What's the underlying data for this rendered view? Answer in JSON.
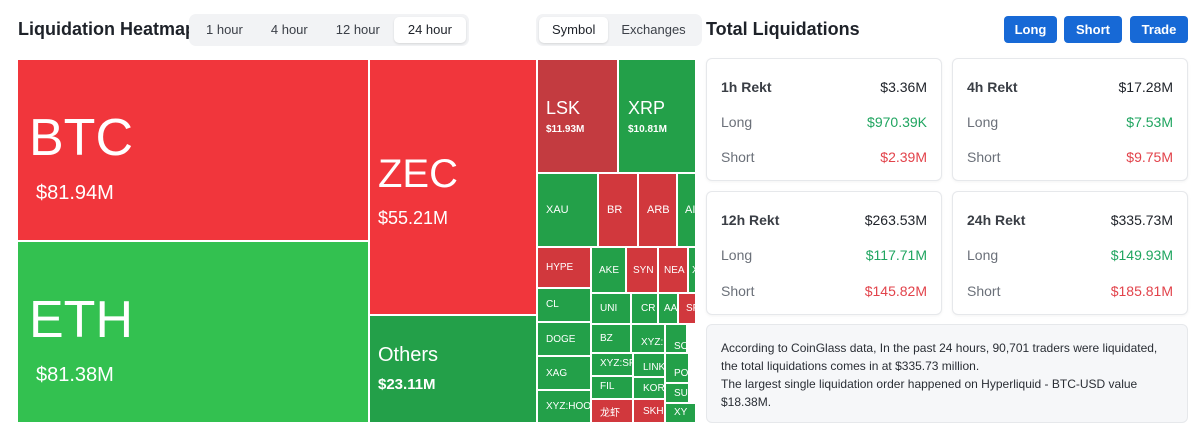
{
  "heatmap": {
    "title": "Liquidation Heatmap",
    "time_tabs": [
      {
        "label": "1 hour",
        "active": false
      },
      {
        "label": "4 hour",
        "active": false
      },
      {
        "label": "12 hour",
        "active": false
      },
      {
        "label": "24 hour",
        "active": true
      }
    ],
    "view_tabs": [
      {
        "label": "Symbol",
        "active": true
      },
      {
        "label": "Exchanges",
        "active": false
      }
    ],
    "tiles": {
      "btc": {
        "symbol": "BTC",
        "value": "$81.94M"
      },
      "eth": {
        "symbol": "ETH",
        "value": "$81.38M"
      },
      "zec": {
        "symbol": "ZEC",
        "value": "$55.21M"
      },
      "others": {
        "symbol": "Others",
        "value": "$23.11M"
      },
      "lsk": {
        "symbol": "LSK",
        "value": "$11.93M"
      },
      "xrp": {
        "symbol": "XRP",
        "value": "$10.81M"
      },
      "xau": {
        "symbol": "XAU"
      },
      "br": {
        "symbol": "BR"
      },
      "arb": {
        "symbol": "ARB"
      },
      "ai": {
        "symbol": "AI"
      },
      "hype": {
        "symbol": "HYPE"
      },
      "ake": {
        "symbol": "AKE"
      },
      "syn": {
        "symbol": "SYN"
      },
      "nea": {
        "symbol": "NEA"
      },
      "x1": {
        "symbol": "X"
      },
      "cl": {
        "symbol": "CL"
      },
      "uni": {
        "symbol": "UNI"
      },
      "cr": {
        "symbol": "CR"
      },
      "aa": {
        "symbol": "AA"
      },
      "sp": {
        "symbol": "SP"
      },
      "doge": {
        "symbol": "DOGE"
      },
      "bz": {
        "symbol": "BZ"
      },
      "xyz1": {
        "symbol": "XYZ:"
      },
      "so": {
        "symbol": "SO"
      },
      "xag": {
        "symbol": "XAG"
      },
      "xyzsp": {
        "symbol": "XYZ:SP"
      },
      "link": {
        "symbol": "LINK"
      },
      "po": {
        "symbol": "PO"
      },
      "xyzhoo": {
        "symbol": "XYZ:HOO"
      },
      "fil": {
        "symbol": "FIL"
      },
      "kor": {
        "symbol": "KOR"
      },
      "su": {
        "symbol": "SU"
      },
      "longxia": {
        "symbol": "龙虾"
      },
      "skh": {
        "symbol": "SKH"
      },
      "xy": {
        "symbol": "XY"
      }
    }
  },
  "totals": {
    "title": "Total Liquidations",
    "buttons": {
      "long": "Long",
      "short": "Short",
      "trade": "Trade"
    },
    "long_label": "Long",
    "short_label": "Short",
    "cards": {
      "h1": {
        "title": "1h Rekt",
        "total": "$3.36M",
        "long": "$970.39K",
        "short": "$2.39M"
      },
      "h4": {
        "title": "4h Rekt",
        "total": "$17.28M",
        "long": "$7.53M",
        "short": "$9.75M"
      },
      "h12": {
        "title": "12h Rekt",
        "total": "$263.53M",
        "long": "$117.71M",
        "short": "$145.82M"
      },
      "h24": {
        "title": "24h Rekt",
        "total": "$335.73M",
        "long": "$149.93M",
        "short": "$185.81M"
      }
    },
    "summary": {
      "line1": "According to CoinGlass data, In the past 24 hours, 90,701 traders were liquidated, the total liquidations comes in at $335.73 million.",
      "line2": "The largest single liquidation order happened on Hyperliquid - BTC-USD value $18.38M."
    }
  },
  "colors": {
    "accent": "#1769d6",
    "long_green": "#20a560",
    "short_red": "#e2434b",
    "tile_red": "#f1363c",
    "tile_green": "#33c150"
  }
}
